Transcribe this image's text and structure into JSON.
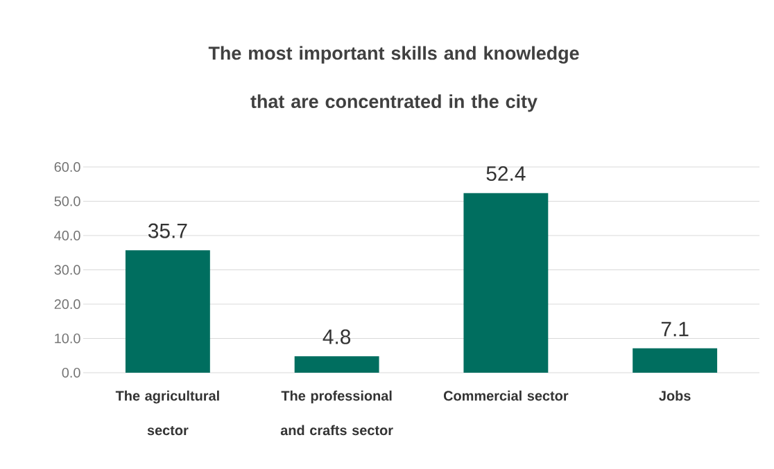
{
  "chart_data": {
    "type": "bar",
    "title": "The most important skills and knowledge that are concentrated in the city",
    "categories": [
      "The agricultural sector",
      "The professional and crafts sector",
      "Commercial sector",
      "Jobs"
    ],
    "values": [
      35.7,
      4.8,
      52.4,
      7.1
    ],
    "color": "#006e5f",
    "ylim": [
      0,
      60
    ],
    "yticks": [
      {
        "value": 0,
        "label": "0.0"
      },
      {
        "value": 10,
        "label": "10.0"
      },
      {
        "value": 20,
        "label": "20.0"
      },
      {
        "value": 30,
        "label": "30.0"
      },
      {
        "value": 40,
        "label": "40.0"
      },
      {
        "value": 50,
        "label": "50.0"
      },
      {
        "value": 60,
        "label": "60.0"
      }
    ],
    "grid": "y",
    "data_labels": true
  }
}
